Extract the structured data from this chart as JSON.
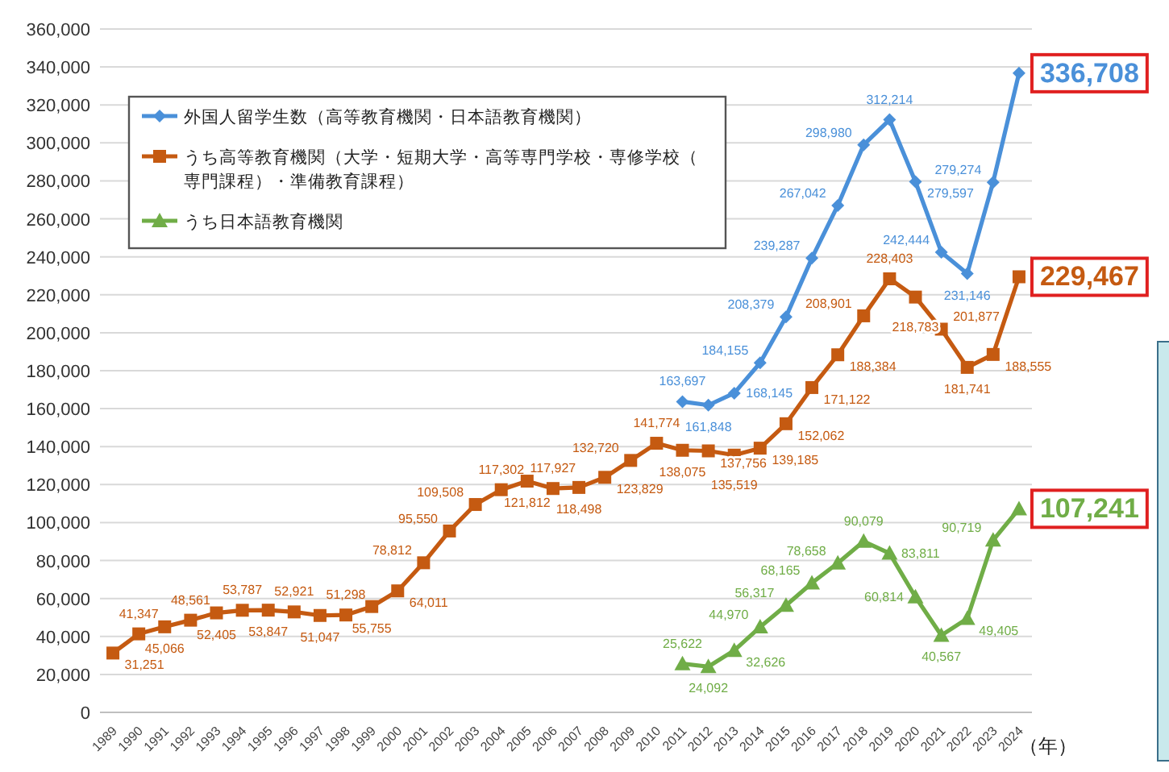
{
  "chart_data": {
    "type": "line",
    "xlabel": "（年）",
    "categories": [
      "1989",
      "1990",
      "1991",
      "1992",
      "1993",
      "1994",
      "1995",
      "1996",
      "1997",
      "1998",
      "1999",
      "2000",
      "2001",
      "2002",
      "2003",
      "2004",
      "2005",
      "2006",
      "2007",
      "2008",
      "2009",
      "2010",
      "2011",
      "2012",
      "2013",
      "2014",
      "2015",
      "2016",
      "2017",
      "2018",
      "2019",
      "2020",
      "2021",
      "2022",
      "2023",
      "2024"
    ],
    "series": [
      {
        "name": "外国人留学生数（高等教育機関・日本語教育機関）",
        "color": "#4a90d9",
        "marker": "diamond",
        "values": [
          null,
          null,
          null,
          null,
          null,
          null,
          null,
          null,
          null,
          null,
          null,
          null,
          null,
          null,
          null,
          null,
          null,
          null,
          null,
          null,
          null,
          null,
          163697,
          161848,
          168145,
          184155,
          208379,
          239287,
          267042,
          298980,
          312214,
          279597,
          242444,
          231146,
          279274,
          336708
        ],
        "value_labels": [
          null,
          null,
          null,
          null,
          null,
          null,
          null,
          null,
          null,
          null,
          null,
          null,
          null,
          null,
          null,
          null,
          null,
          null,
          null,
          null,
          null,
          null,
          "163,697",
          "161,848",
          "168,145",
          "184,155",
          "208,379",
          "239,287",
          "267,042",
          "298,980",
          "312,214",
          "279,597",
          "242,444",
          "231,146",
          "279,274",
          "336,708"
        ]
      },
      {
        "name": "うち高等教育機関（大学・短期大学・高等専門学校・専修学校（専門課程）・準備教育課程）",
        "color": "#c55a11",
        "marker": "square",
        "values": [
          31251,
          41347,
          45066,
          48561,
          52405,
          53787,
          53847,
          52921,
          51047,
          51298,
          55755,
          64011,
          78812,
          95550,
          109508,
          117302,
          121812,
          117927,
          118498,
          123829,
          132720,
          141774,
          138075,
          137756,
          135519,
          139185,
          152062,
          171122,
          188384,
          208901,
          228403,
          218783,
          201877,
          181741,
          188555,
          229467
        ],
        "value_labels": [
          "31,251",
          "41,347",
          "45,066",
          "48,561",
          "52,405",
          "53,787",
          "53,847",
          "52,921",
          "51,047",
          "51,298",
          "55,755",
          "64,011",
          "78,812",
          "95,550",
          "109,508",
          "117,302",
          "121,812",
          "117,927",
          "118,498",
          "123,829",
          "132,720",
          "141,774",
          "138,075",
          "137,756",
          "135,519",
          "139,185",
          "152,062",
          "171,122",
          "188,384",
          "208,901",
          "228,403",
          "218,783",
          "201,877",
          "181,741",
          "188,555",
          "229,467"
        ]
      },
      {
        "name": "うち日本語教育機関",
        "color": "#70ad47",
        "marker": "triangle",
        "values": [
          null,
          null,
          null,
          null,
          null,
          null,
          null,
          null,
          null,
          null,
          null,
          null,
          null,
          null,
          null,
          null,
          null,
          null,
          null,
          null,
          null,
          null,
          25622,
          24092,
          32626,
          44970,
          56317,
          68165,
          78658,
          90079,
          83811,
          60814,
          40567,
          49405,
          90719,
          107241
        ],
        "value_labels": [
          null,
          null,
          null,
          null,
          null,
          null,
          null,
          null,
          null,
          null,
          null,
          null,
          null,
          null,
          null,
          null,
          null,
          null,
          null,
          null,
          null,
          null,
          "25,622",
          "24,092",
          "32,626",
          "44,970",
          "56,317",
          "68,165",
          "78,658",
          "90,079",
          "83,811",
          "60,814",
          "40,567",
          "49,405",
          "90,719",
          "107,241"
        ]
      }
    ],
    "ylim": [
      0,
      360000
    ],
    "yticks": [
      0,
      {
        "value": 20000,
        "label": "20,000"
      },
      {
        "value": 40000,
        "label": "40,000"
      },
      {
        "value": 60000,
        "label": "60,000"
      },
      {
        "value": 80000,
        "label": "80,000"
      },
      {
        "value": 100000,
        "label": "100,000"
      },
      {
        "value": 120000,
        "label": "120,000"
      },
      {
        "value": 140000,
        "label": "140,000"
      },
      {
        "value": 160000,
        "label": "160,000"
      },
      {
        "value": 180000,
        "label": "180,000"
      },
      {
        "value": 200000,
        "label": "200,000"
      },
      {
        "value": 220000,
        "label": "220,000"
      },
      {
        "value": 240000,
        "label": "240,000"
      },
      {
        "value": 260000,
        "label": "260,000"
      },
      {
        "value": 280000,
        "label": "280,000"
      },
      {
        "value": 300000,
        "label": "300,000"
      },
      {
        "value": 320000,
        "label": "320,000"
      },
      {
        "value": 340000,
        "label": "340,000"
      },
      {
        "value": 360000,
        "label": "360,000"
      }
    ],
    "grid": "y",
    "legend": "top left",
    "data_labels": true,
    "line_style": "solid"
  }
}
